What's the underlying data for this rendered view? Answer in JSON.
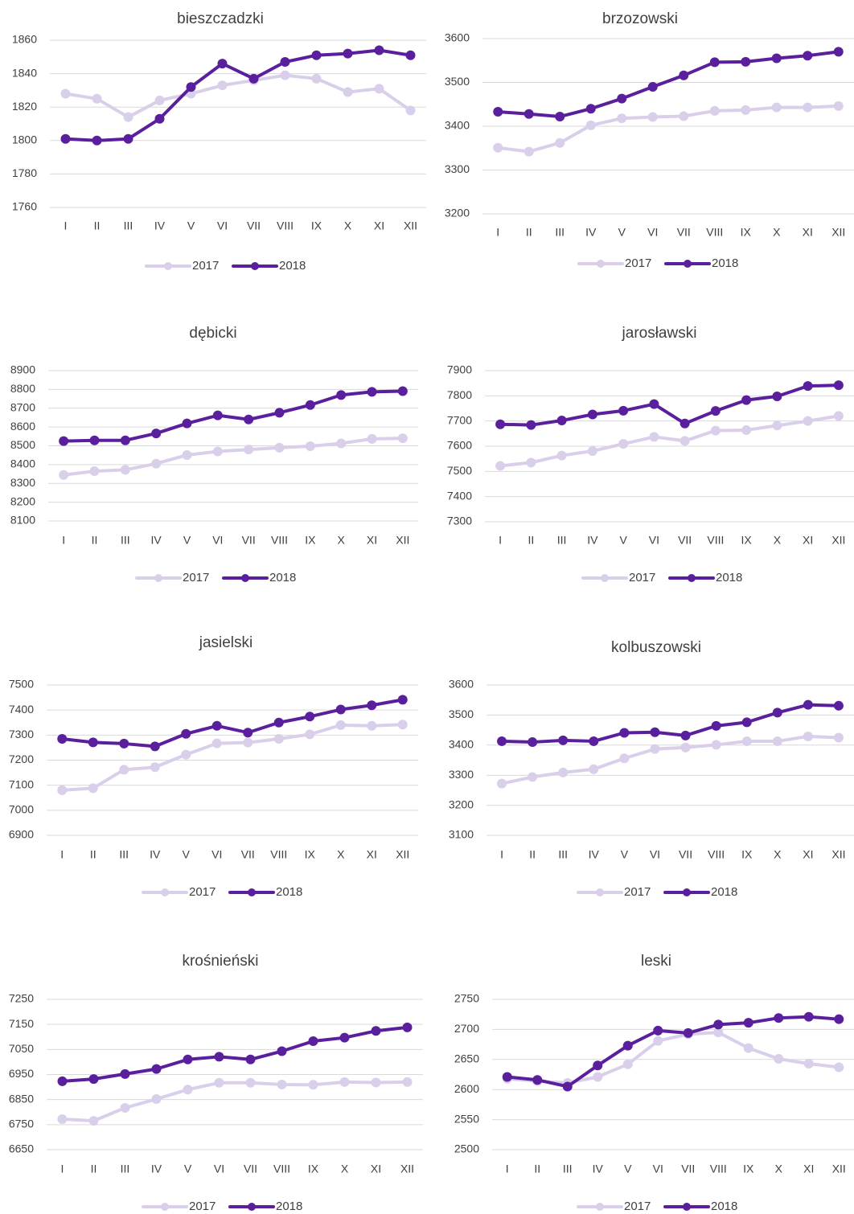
{
  "colors": {
    "series_2017": "#d9cfea",
    "series_2018": "#5a1f9c",
    "grid": "#d9d9d9",
    "text": "#404040"
  },
  "legend": {
    "label_2017": "2017",
    "label_2018": "2018"
  },
  "chart_data": [
    {
      "type": "line",
      "title": "bieszczadzki",
      "categories": [
        "I",
        "II",
        "III",
        "IV",
        "V",
        "VI",
        "VII",
        "VIII",
        "IX",
        "X",
        "XI",
        "XII"
      ],
      "ylim": [
        1760,
        1860
      ],
      "yticks": [
        1760,
        1780,
        1800,
        1820,
        1840,
        1860
      ],
      "grid": true,
      "legend_position": "bottom",
      "series": [
        {
          "name": "2017",
          "values": [
            1828,
            1825,
            1814,
            1824,
            1828,
            1833,
            1836,
            1839,
            1837,
            1829,
            1831,
            1818
          ]
        },
        {
          "name": "2018",
          "values": [
            1801,
            1800,
            1801,
            1813,
            1832,
            1846,
            1837,
            1847,
            1851,
            1852,
            1854,
            1851
          ]
        }
      ]
    },
    {
      "type": "line",
      "title": "brzozowski",
      "categories": [
        "I",
        "II",
        "III",
        "IV",
        "V",
        "VI",
        "VII",
        "VIII",
        "IX",
        "X",
        "XI",
        "XII"
      ],
      "ylim": [
        3200,
        3600
      ],
      "yticks": [
        3200,
        3300,
        3400,
        3500,
        3600
      ],
      "grid": true,
      "legend_position": "bottom",
      "series": [
        {
          "name": "2017",
          "values": [
            3351,
            3342,
            3362,
            3402,
            3418,
            3421,
            3423,
            3435,
            3437,
            3443,
            3443,
            3446
          ]
        },
        {
          "name": "2018",
          "values": [
            3433,
            3428,
            3422,
            3440,
            3463,
            3490,
            3516,
            3546,
            3547,
            3555,
            3561,
            3570
          ]
        }
      ]
    },
    {
      "type": "line",
      "title": "dębicki",
      "categories": [
        "I",
        "II",
        "III",
        "IV",
        "V",
        "VI",
        "VII",
        "VIII",
        "IX",
        "X",
        "XI",
        "XII"
      ],
      "ylim": [
        8100,
        8900
      ],
      "yticks": [
        8100,
        8200,
        8300,
        8400,
        8500,
        8600,
        8700,
        8800,
        8900
      ],
      "grid": true,
      "legend_position": "bottom",
      "series": [
        {
          "name": "2017",
          "values": [
            8345,
            8365,
            8372,
            8405,
            8451,
            8470,
            8480,
            8490,
            8498,
            8513,
            8537,
            8540
          ]
        },
        {
          "name": "2018",
          "values": [
            8525,
            8529,
            8529,
            8566,
            8619,
            8662,
            8640,
            8676,
            8717,
            8770,
            8787,
            8791
          ]
        }
      ]
    },
    {
      "type": "line",
      "title": "jarosławski",
      "categories": [
        "I",
        "II",
        "III",
        "IV",
        "V",
        "VI",
        "VII",
        "VIII",
        "IX",
        "X",
        "XI",
        "XII"
      ],
      "ylim": [
        7300,
        7900
      ],
      "yticks": [
        7300,
        7400,
        7500,
        7600,
        7700,
        7800,
        7900
      ],
      "grid": true,
      "legend_position": "bottom",
      "series": [
        {
          "name": "2017",
          "values": [
            7522,
            7535,
            7563,
            7581,
            7609,
            7637,
            7621,
            7662,
            7664,
            7682,
            7700,
            7720
          ]
        },
        {
          "name": "2018",
          "values": [
            7687,
            7684,
            7702,
            7726,
            7741,
            7767,
            7690,
            7740,
            7783,
            7798,
            7839,
            7842
          ]
        }
      ]
    },
    {
      "type": "line",
      "title": "jasielski",
      "categories": [
        "I",
        "II",
        "III",
        "IV",
        "V",
        "VI",
        "VII",
        "VIII",
        "IX",
        "X",
        "XI",
        "XII"
      ],
      "ylim": [
        6900,
        7500
      ],
      "yticks": [
        6900,
        7000,
        7100,
        7200,
        7300,
        7400,
        7500
      ],
      "grid": true,
      "legend_position": "bottom",
      "series": [
        {
          "name": "2017",
          "values": [
            7080,
            7088,
            7162,
            7172,
            7222,
            7267,
            7270,
            7285,
            7303,
            7340,
            7337,
            7342
          ]
        },
        {
          "name": "2018",
          "values": [
            7285,
            7271,
            7266,
            7255,
            7305,
            7337,
            7310,
            7350,
            7374,
            7402,
            7419,
            7441
          ]
        }
      ]
    },
    {
      "type": "line",
      "title": "kolbuszowski",
      "categories": [
        "I",
        "II",
        "III",
        "IV",
        "V",
        "VI",
        "VII",
        "VIII",
        "IX",
        "X",
        "XI",
        "XII"
      ],
      "ylim": [
        3100,
        3600
      ],
      "yticks": [
        3100,
        3200,
        3300,
        3400,
        3500,
        3600
      ],
      "grid": true,
      "legend_position": "bottom",
      "series": [
        {
          "name": "2017",
          "values": [
            3272,
            3294,
            3309,
            3320,
            3356,
            3387,
            3392,
            3401,
            3413,
            3413,
            3429,
            3425
          ]
        },
        {
          "name": "2018",
          "values": [
            3413,
            3410,
            3416,
            3413,
            3441,
            3443,
            3432,
            3464,
            3476,
            3508,
            3534,
            3531
          ]
        }
      ]
    },
    {
      "type": "line",
      "title": "krośnieński",
      "categories": [
        "I",
        "II",
        "III",
        "IV",
        "V",
        "VI",
        "VII",
        "VIII",
        "IX",
        "X",
        "XI",
        "XII"
      ],
      "ylim": [
        6650,
        7250
      ],
      "yticks": [
        6650,
        6750,
        6850,
        6950,
        7050,
        7150,
        7250
      ],
      "grid": true,
      "legend_position": "bottom",
      "series": [
        {
          "name": "2017",
          "values": [
            6772,
            6765,
            6817,
            6852,
            6890,
            6917,
            6917,
            6910,
            6909,
            6920,
            6918,
            6920
          ]
        },
        {
          "name": "2018",
          "values": [
            6923,
            6932,
            6952,
            6972,
            7010,
            7021,
            7010,
            7043,
            7083,
            7097,
            7124,
            7138
          ]
        }
      ]
    },
    {
      "type": "line",
      "title": "leski",
      "categories": [
        "I",
        "II",
        "III",
        "IV",
        "V",
        "VI",
        "VII",
        "VIII",
        "IX",
        "X",
        "XI",
        "XII"
      ],
      "ylim": [
        2500,
        2750
      ],
      "yticks": [
        2500,
        2550,
        2600,
        2650,
        2700,
        2750
      ],
      "grid": true,
      "legend_position": "bottom",
      "series": [
        {
          "name": "2017",
          "values": [
            2618,
            2614,
            2611,
            2621,
            2642,
            2681,
            2692,
            2695,
            2669,
            2651,
            2643,
            2637
          ]
        },
        {
          "name": "2018",
          "values": [
            2621,
            2616,
            2605,
            2640,
            2673,
            2698,
            2694,
            2708,
            2711,
            2719,
            2721,
            2717
          ]
        }
      ]
    }
  ]
}
